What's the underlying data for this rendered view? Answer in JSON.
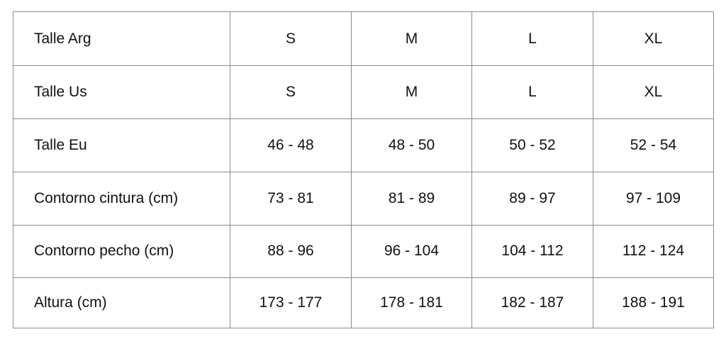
{
  "rows": [
    {
      "label": "Talle Arg",
      "values": [
        "S",
        "M",
        "L",
        "XL"
      ]
    },
    {
      "label": "Talle Us",
      "values": [
        "S",
        "M",
        "L",
        "XL"
      ]
    },
    {
      "label": "Talle Eu",
      "values": [
        "46 - 48",
        "48 - 50",
        "50 - 52",
        "52 - 54"
      ]
    },
    {
      "label": "Contorno cintura (cm)",
      "values": [
        "73 - 81",
        "81 - 89",
        "89 - 97",
        "97 - 109"
      ]
    },
    {
      "label": "Contorno pecho (cm)",
      "values": [
        "88 - 96",
        "96 - 104",
        "104 - 112",
        "112 - 124"
      ]
    },
    {
      "label": "Altura (cm)",
      "values": [
        "173 - 177",
        "178 - 181",
        "182 - 187",
        "188 - 191"
      ]
    }
  ]
}
